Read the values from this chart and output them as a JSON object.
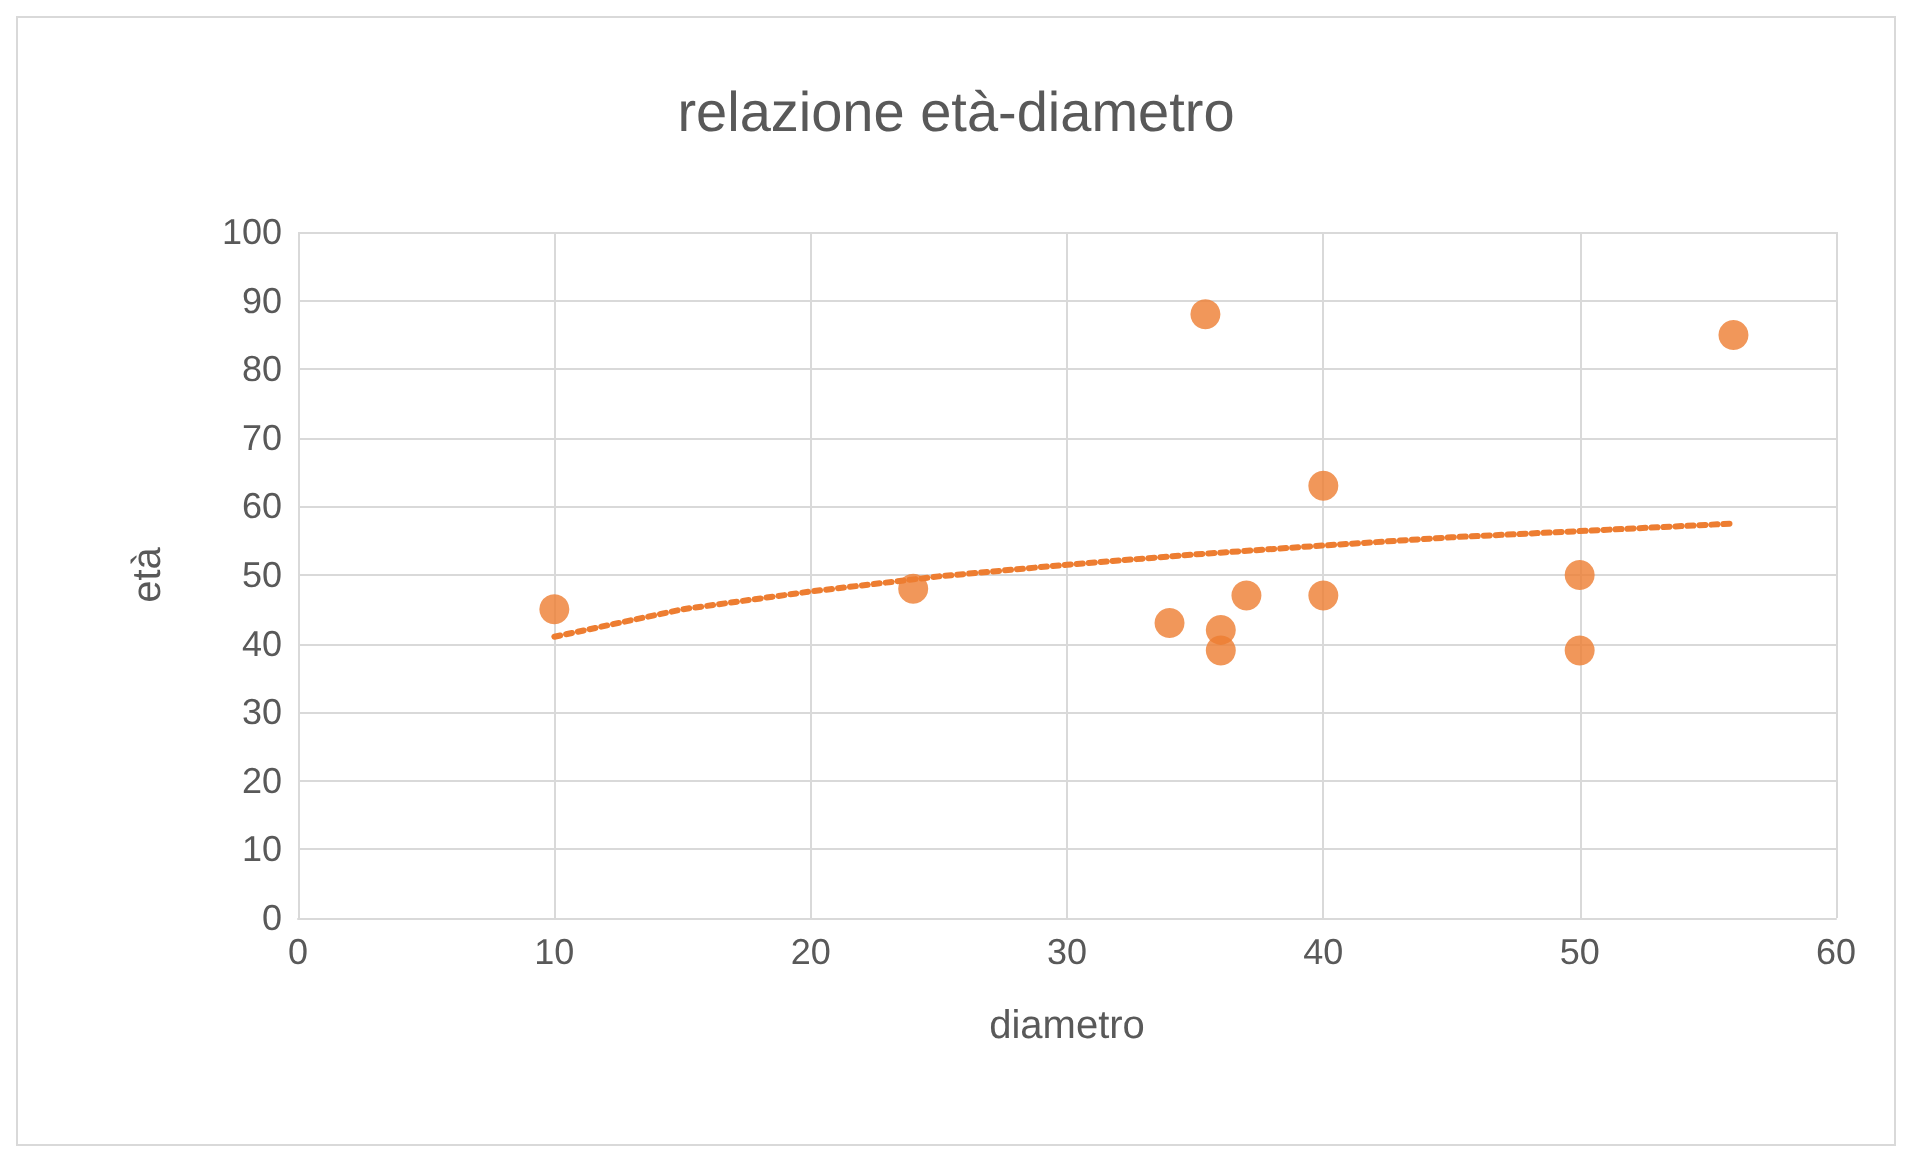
{
  "chart_data": {
    "type": "scatter",
    "title": "relazione età-diametro",
    "xlabel": "diametro",
    "ylabel": "età",
    "xlim": [
      0,
      60
    ],
    "xticks": [
      0,
      10,
      20,
      30,
      40,
      50,
      60
    ],
    "ylim": [
      0,
      100
    ],
    "yticks": [
      0,
      10,
      20,
      30,
      40,
      50,
      60,
      70,
      80,
      90,
      100
    ],
    "grid": true,
    "marker": "circle",
    "series": [
      {
        "color": "#ed7d31",
        "x": [
          10,
          24,
          35.4,
          56,
          40,
          40,
          34,
          36,
          36,
          37,
          50,
          50
        ],
        "values": [
          45,
          48,
          88,
          85,
          63,
          47,
          43,
          42,
          39,
          47,
          50,
          39
        ]
      },
      {
        "type": "line",
        "color": "#ed7d31",
        "line_style": "dotted",
        "marker": "none",
        "x": [
          10,
          15,
          20,
          25,
          30,
          35,
          40,
          45,
          50,
          56
        ],
        "values": [
          41,
          45,
          47.6,
          49.8,
          51.5,
          53,
          54.3,
          55.5,
          56.4,
          57.5
        ]
      }
    ]
  }
}
